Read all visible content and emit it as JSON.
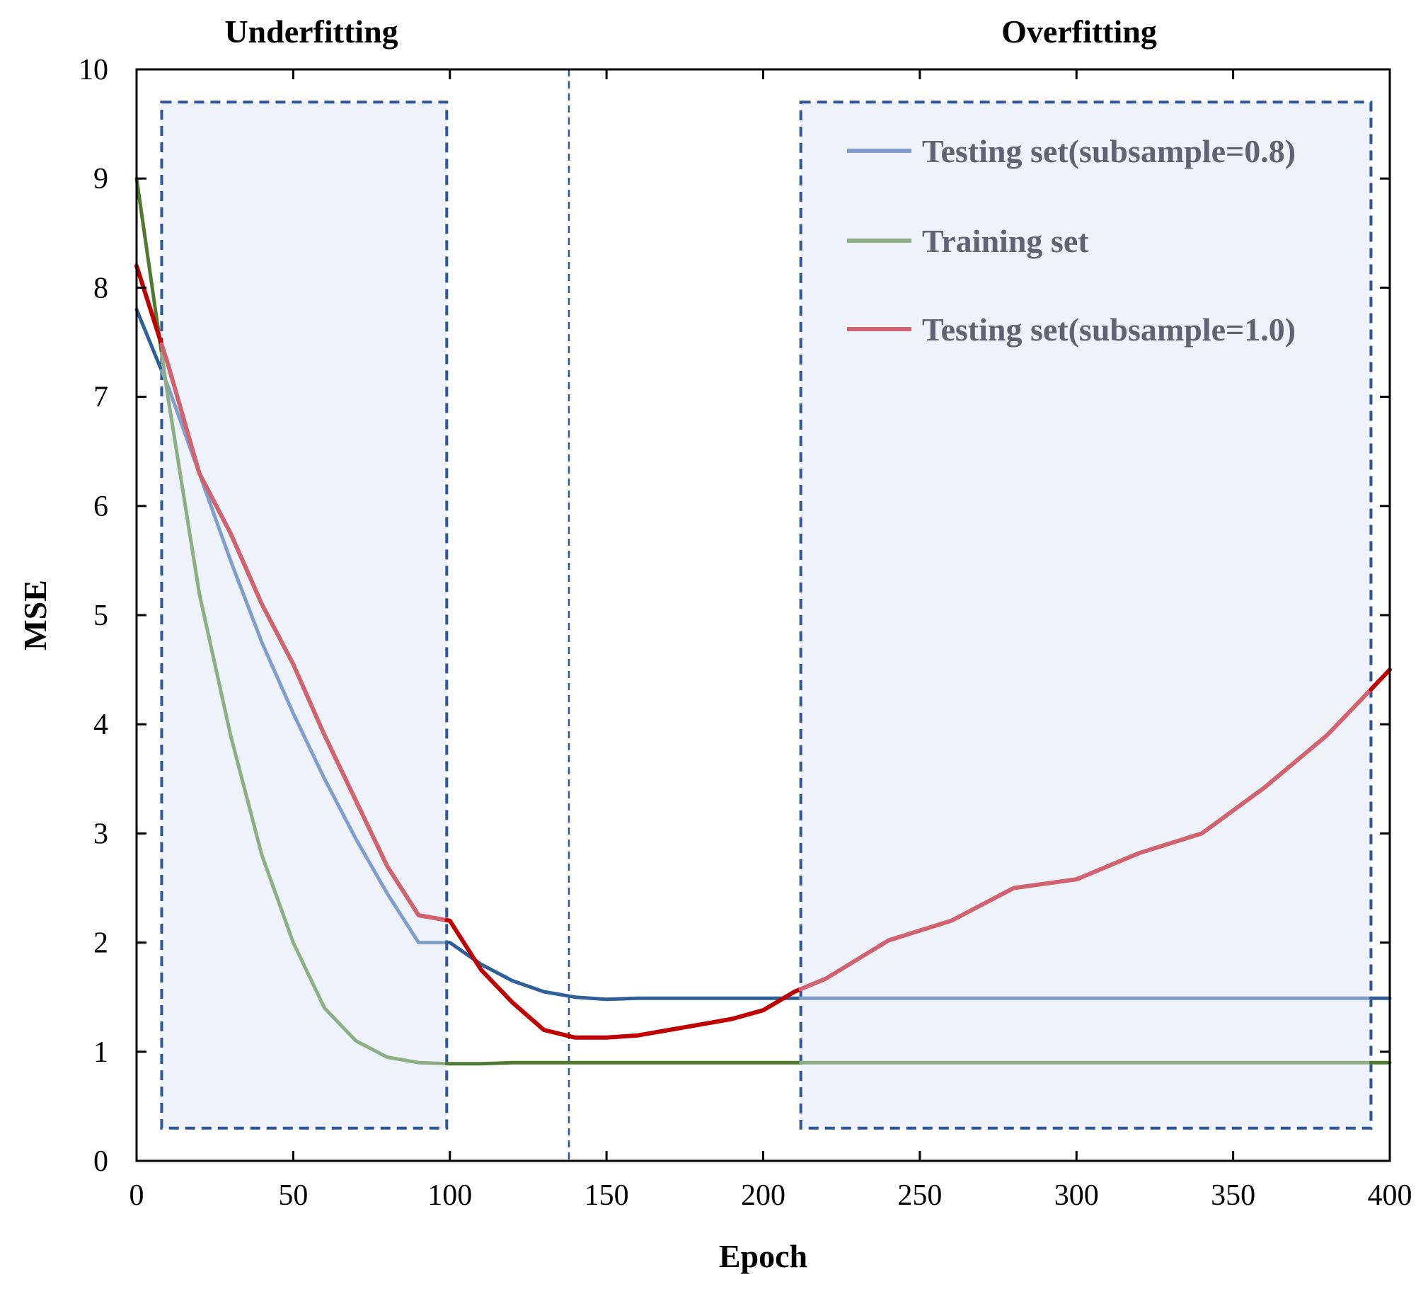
{
  "chart_data": {
    "type": "line",
    "title": "",
    "xlabel": "Epoch",
    "ylabel": "MSE",
    "xlim": [
      0,
      400
    ],
    "ylim": [
      0,
      10
    ],
    "xticks": [
      "0",
      "50",
      "100",
      "150",
      "200",
      "250",
      "300",
      "350",
      "400"
    ],
    "yticks": [
      "0",
      "1",
      "2",
      "3",
      "4",
      "5",
      "6",
      "7",
      "8",
      "9",
      "10"
    ],
    "grid": false,
    "legend_position": "top-right",
    "regions": [
      {
        "label": "Underfitting",
        "x_start": 8,
        "x_end": 99,
        "y_bottom": 0.3,
        "y_top": 9.7
      },
      {
        "label": "Overfitting",
        "x_start": 212,
        "x_end": 394,
        "y_bottom": 0.3,
        "y_top": 9.7
      }
    ],
    "vline_x": 138,
    "series": [
      {
        "name": "Testing set(subsample=0.8)",
        "color_light": "#7f9fca",
        "color_dark": "#2e5f97",
        "x": [
          0,
          10,
          20,
          30,
          40,
          50,
          60,
          70,
          80,
          90,
          100,
          110,
          120,
          130,
          140,
          150,
          160,
          180,
          200,
          220,
          250,
          300,
          350,
          400
        ],
        "y": [
          7.8,
          7.1,
          6.3,
          5.5,
          4.75,
          4.1,
          3.5,
          2.95,
          2.45,
          2.0,
          2.0,
          1.8,
          1.65,
          1.55,
          1.5,
          1.48,
          1.49,
          1.49,
          1.49,
          1.49,
          1.49,
          1.49,
          1.49,
          1.49
        ]
      },
      {
        "name": "Training set",
        "color_light": "#8fae85",
        "color_dark": "#4f7a2f",
        "x": [
          0,
          10,
          20,
          30,
          40,
          50,
          60,
          70,
          80,
          90,
          100,
          110,
          120,
          140,
          160,
          200,
          250,
          300,
          350,
          400
        ],
        "y": [
          9.0,
          7.0,
          5.2,
          3.9,
          2.8,
          2.0,
          1.4,
          1.1,
          0.95,
          0.9,
          0.89,
          0.89,
          0.9,
          0.9,
          0.9,
          0.9,
          0.9,
          0.9,
          0.9,
          0.9
        ]
      },
      {
        "name": "Testing set(subsample=1.0)",
        "color_light": "#d0636f",
        "color_dark": "#c00000",
        "x": [
          0,
          10,
          20,
          30,
          40,
          50,
          60,
          70,
          80,
          90,
          100,
          110,
          120,
          130,
          140,
          150,
          160,
          170,
          180,
          190,
          200,
          210,
          220,
          240,
          260,
          280,
          300,
          320,
          340,
          360,
          380,
          400
        ],
        "y": [
          8.2,
          7.3,
          6.3,
          5.75,
          5.1,
          4.55,
          3.9,
          3.3,
          2.7,
          2.25,
          2.2,
          1.75,
          1.45,
          1.2,
          1.13,
          1.13,
          1.15,
          1.2,
          1.25,
          1.3,
          1.38,
          1.55,
          1.67,
          2.02,
          2.2,
          2.5,
          2.58,
          2.82,
          3.0,
          3.42,
          3.9,
          4.5
        ]
      }
    ]
  }
}
